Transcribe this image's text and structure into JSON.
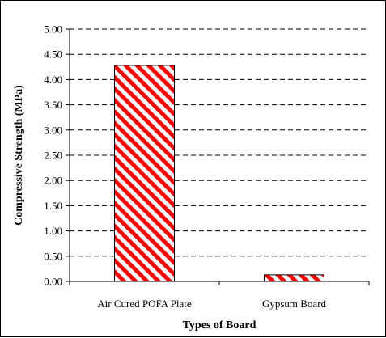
{
  "chart_data": {
    "type": "bar",
    "title": "",
    "xlabel": "Types of Board",
    "ylabel": "Compressive Strength (MPa)",
    "categories": [
      "Air Cured POFA Plate",
      "Gypsum Board"
    ],
    "series": [
      {
        "values": [
          4.28,
          0.13
        ]
      }
    ],
    "ylim": [
      0,
      5
    ],
    "yticks": [
      "0.00",
      "0.50",
      "1.00",
      "1.50",
      "2.00",
      "2.50",
      "3.00",
      "3.50",
      "4.00",
      "4.50",
      "5.00"
    ],
    "grid": "horizontal dashed",
    "legend": "none",
    "bar_fill": "diagonal red/white stripes",
    "colors": {
      "bar_stripe": "#ff0000",
      "bar_background": "#ffffff",
      "bar_outline": "#000000",
      "gridline": "#000000",
      "axis": "#000000"
    }
  }
}
